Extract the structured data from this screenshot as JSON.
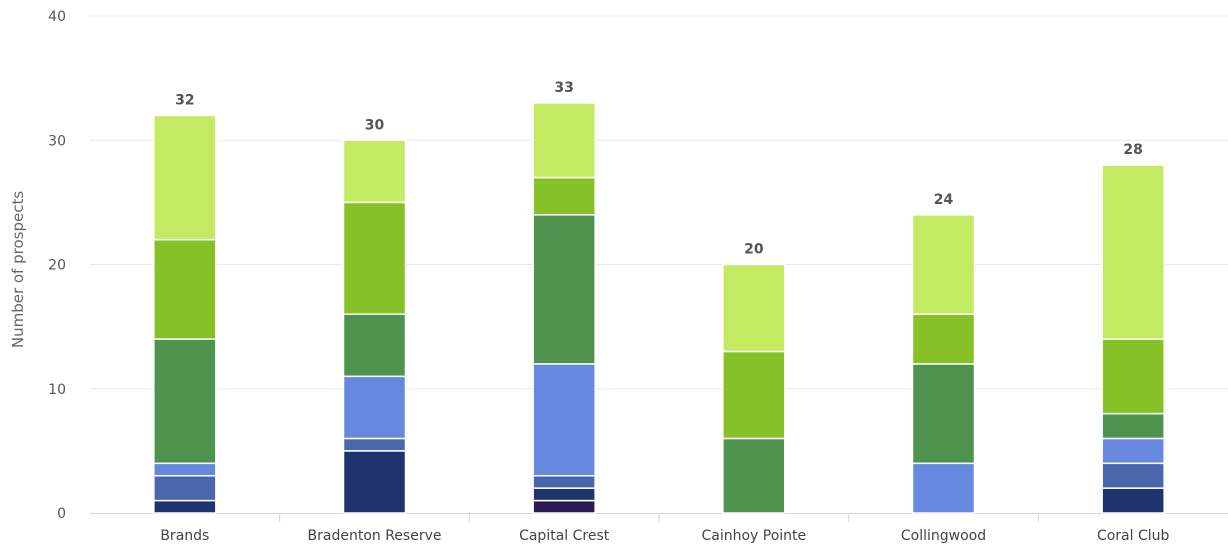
{
  "chart_data": {
    "type": "bar",
    "stacked": true,
    "ylabel": "Number of prospects",
    "xlabel": "",
    "ylim": [
      0,
      40
    ],
    "yticks": [
      "0",
      "10",
      "20",
      "30",
      "40"
    ],
    "grid": true,
    "legend": "none",
    "categories": [
      "Brands",
      "Bradenton Reserve",
      "Capital Crest",
      "Cainhoy Pointe",
      "Collingwood",
      "Coral Club"
    ],
    "totals": [
      "32",
      "30",
      "33",
      "20",
      "24",
      "28"
    ],
    "series": [
      {
        "color": "#2b1a55",
        "values": [
          0,
          0,
          1,
          0,
          0,
          0
        ]
      },
      {
        "color": "#1f3370",
        "values": [
          1,
          5,
          1,
          0,
          0,
          2
        ]
      },
      {
        "color": "#4a66ad",
        "values": [
          2,
          1,
          1,
          0,
          0,
          2
        ]
      },
      {
        "color": "#6688de",
        "values": [
          1,
          5,
          9,
          0,
          4,
          2
        ]
      },
      {
        "color": "#4f944e",
        "values": [
          10,
          5,
          12,
          6,
          8,
          2
        ]
      },
      {
        "color": "#86c127",
        "values": [
          8,
          9,
          3,
          7,
          4,
          6
        ]
      },
      {
        "color": "#c2ea62",
        "values": [
          10,
          5,
          6,
          7,
          8,
          14
        ]
      }
    ]
  }
}
